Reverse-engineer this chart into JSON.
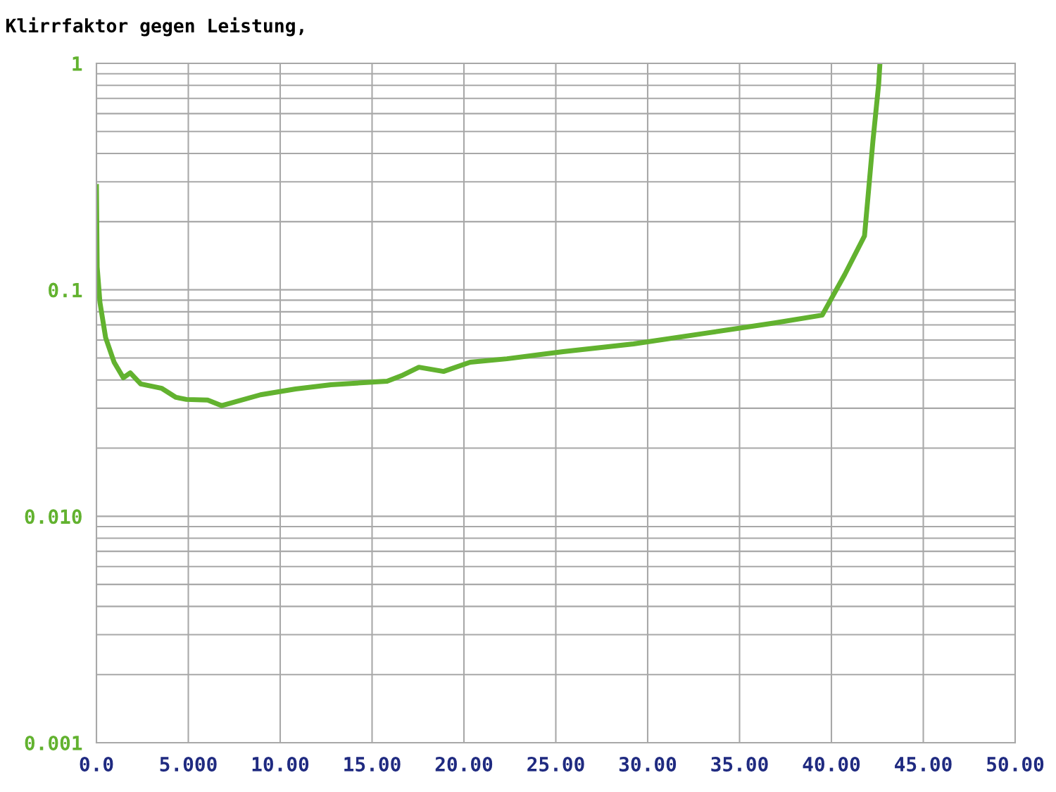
{
  "chart_data": {
    "type": "line",
    "title": "Klirrfaktor gegen Leistung,",
    "x": [
      0,
      0.04,
      0.19,
      0.5,
      0.96,
      1.46,
      1.84,
      2.41,
      3.56,
      4.33,
      4.9,
      6.05,
      6.82,
      8.93,
      10.84,
      12.76,
      15.82,
      16.59,
      17.55,
      18.89,
      20.34,
      22.34,
      25.4,
      29.23,
      33.07,
      36.9,
      39.5,
      40.73,
      41.8,
      41.99,
      42.26,
      42.57,
      42.64
    ],
    "series": [
      {
        "color": "#62b22f",
        "values": [
          0.286,
          0.126,
          0.088,
          0.0615,
          0.0479,
          0.0409,
          0.043,
          0.0384,
          0.0367,
          0.0335,
          0.0328,
          0.0326,
          0.0308,
          0.0344,
          0.0365,
          0.0381,
          0.0395,
          0.0417,
          0.0455,
          0.0436,
          0.0479,
          0.0496,
          0.0533,
          0.0577,
          0.0642,
          0.0714,
          0.0773,
          0.117,
          0.173,
          0.257,
          0.455,
          0.807,
          1.0
        ]
      }
    ],
    "log": "y",
    "xlim": [
      0,
      50
    ],
    "ylim": [
      0.001,
      1
    ],
    "xticks": [
      {
        "value": 0,
        "label": "0.0"
      },
      {
        "value": 5,
        "label": "5.000"
      },
      {
        "value": 10,
        "label": "10.00"
      },
      {
        "value": 15,
        "label": "15.00"
      },
      {
        "value": 20,
        "label": "20.00"
      },
      {
        "value": 25,
        "label": "25.00"
      },
      {
        "value": 30,
        "label": "30.00"
      },
      {
        "value": 35,
        "label": "35.00"
      },
      {
        "value": 40,
        "label": "40.00"
      },
      {
        "value": 45,
        "label": "45.00"
      },
      {
        "value": 50,
        "label": "50.00"
      }
    ],
    "yticks": [
      {
        "value": 0.001,
        "label": "0.001"
      },
      {
        "value": 0.01,
        "label": "0.010"
      },
      0.1,
      1
    ],
    "grid": true,
    "legend": false,
    "marker": "none",
    "line_style": "solid"
  }
}
